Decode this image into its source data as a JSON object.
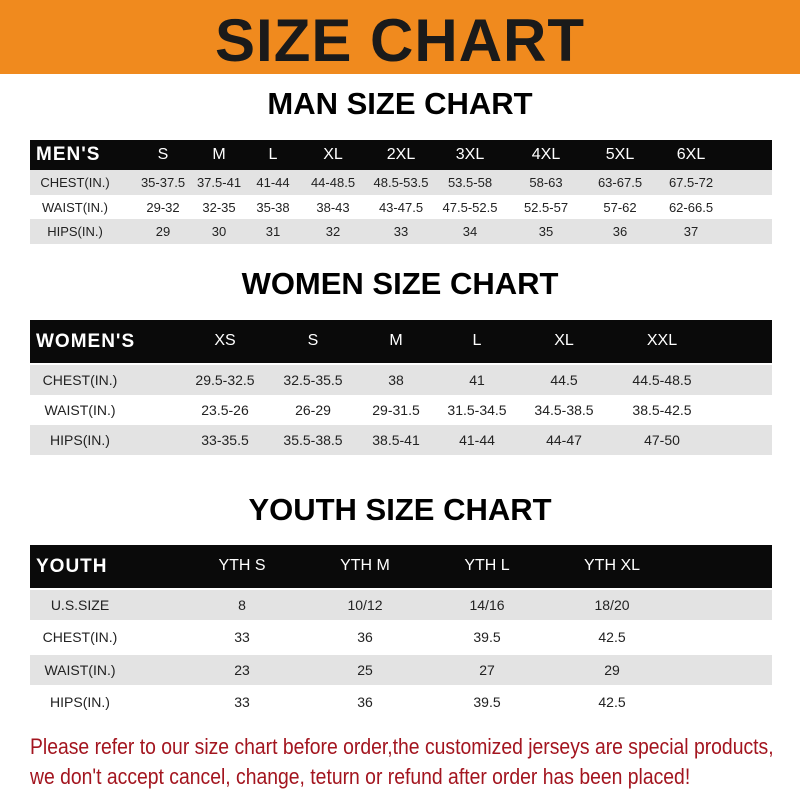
{
  "title": "SIZE CHART",
  "colors": {
    "banner": "#f08a1e",
    "header_row": "#0a0a0a",
    "note_text": "#a3151f"
  },
  "men": {
    "heading": "MAN SIZE CHART",
    "header": [
      "MEN'S",
      "S",
      "M",
      "L",
      "XL",
      "2XL",
      "3XL",
      "4XL",
      "5XL",
      "6XL"
    ],
    "rows": [
      [
        "CHEST(IN.)",
        "35-37.5",
        "37.5-41",
        "41-44",
        "44-48.5",
        "48.5-53.5",
        "53.5-58",
        "58-63",
        "63-67.5",
        "67.5-72"
      ],
      [
        "WAIST(IN.)",
        "29-32",
        "32-35",
        "35-38",
        "38-43",
        "43-47.5",
        "47.5-52.5",
        "52.5-57",
        "57-62",
        "62-66.5"
      ],
      [
        "HIPS(IN.)",
        "29",
        "30",
        "31",
        "32",
        "33",
        "34",
        "35",
        "36",
        "37"
      ]
    ]
  },
  "women": {
    "heading": "WOMEN SIZE CHART",
    "header": [
      "WOMEN'S",
      "XS",
      "S",
      "M",
      "L",
      "XL",
      "XXL"
    ],
    "rows": [
      [
        "CHEST(IN.)",
        "29.5-32.5",
        "32.5-35.5",
        "38",
        "41",
        "44.5",
        "44.5-48.5"
      ],
      [
        "WAIST(IN.)",
        "23.5-26",
        "26-29",
        "29-31.5",
        "31.5-34.5",
        "34.5-38.5",
        "38.5-42.5"
      ],
      [
        "HIPS(IN.)",
        "33-35.5",
        "35.5-38.5",
        "38.5-41",
        "41-44",
        "44-47",
        "47-50"
      ]
    ]
  },
  "youth": {
    "heading": "YOUTH SIZE CHART",
    "header": [
      "YOUTH",
      "YTH S",
      "YTH M",
      "YTH L",
      "YTH XL"
    ],
    "rows": [
      [
        "U.S.SIZE",
        "8",
        "10/12",
        "14/16",
        "18/20"
      ],
      [
        "CHEST(IN.)",
        "33",
        "36",
        "39.5",
        "42.5"
      ],
      [
        "WAIST(IN.)",
        "23",
        "25",
        "27",
        "29"
      ],
      [
        "HIPS(IN.)",
        "33",
        "36",
        "39.5",
        "42.5"
      ]
    ]
  },
  "note": {
    "line1": "Please refer to our size chart before order,the customized jerseys are special products,",
    "line2": "we don't accept cancel, change, teturn or refund after order has been placed!"
  }
}
